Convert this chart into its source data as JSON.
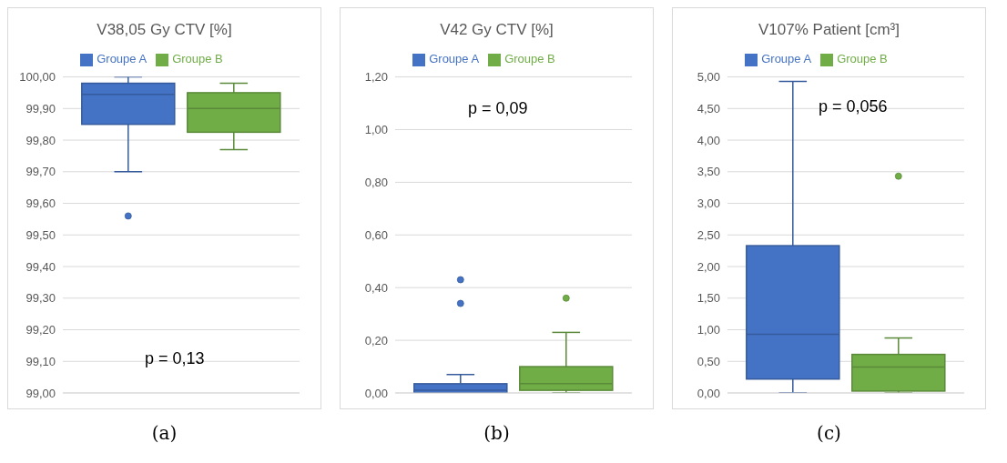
{
  "chart_data": [
    {
      "type": "box",
      "title": "V38,05 Gy CTV [%]",
      "categories": [
        null
      ],
      "legend": "top",
      "grid": "y",
      "tick_labels": "y",
      "ylim": [
        99,
        100
      ],
      "yticks": [
        {
          "value": 99,
          "label": "99,00"
        },
        {
          "value": 99.1,
          "label": "99,10"
        },
        {
          "value": 99.2,
          "label": "99,20"
        },
        {
          "value": 99.3,
          "label": "99,30"
        },
        {
          "value": 99.4,
          "label": "99,40"
        },
        {
          "value": 99.5,
          "label": "99,50"
        },
        {
          "value": 99.6,
          "label": "99,60"
        },
        {
          "value": 99.7,
          "label": "99,70"
        },
        {
          "value": 99.8,
          "label": "99,80"
        },
        {
          "value": 99.9,
          "label": "99,90"
        },
        {
          "value": 100,
          "label": "100,00"
        }
      ],
      "annotations": [
        "p = 0,13",
        "(a)"
      ],
      "series": [
        {
          "name": "Groupe A",
          "color": "#4472c4",
          "boxes": [
            {
              "low": 99.7,
              "q1": 99.85,
              "median": 99.945,
              "q3": 99.98,
              "high": 100,
              "outliers": [
                99.56
              ]
            }
          ]
        },
        {
          "name": "Groupe B",
          "color": "#70ad47",
          "boxes": [
            {
              "low": 99.77,
              "q1": 99.825,
              "median": 99.9,
              "q3": 99.95,
              "high": 99.98
            }
          ]
        }
      ]
    },
    {
      "type": "box",
      "title": "V42 Gy CTV [%]",
      "categories": [
        null
      ],
      "legend": "top",
      "grid": "y",
      "tick_labels": "y",
      "ylim": [
        0,
        1.2
      ],
      "yticks": [
        {
          "value": 0,
          "label": "0,00"
        },
        {
          "value": 0.2,
          "label": "0,20"
        },
        {
          "value": 0.4,
          "label": "0,40"
        },
        {
          "value": 0.6,
          "label": "0,60"
        },
        {
          "value": 0.8,
          "label": "0,80"
        },
        {
          "value": 1,
          "label": "1,00"
        },
        {
          "value": 1.2,
          "label": "1,20"
        }
      ],
      "annotations": [
        "p = 0,09",
        "(b)"
      ],
      "series": [
        {
          "name": "Groupe A",
          "color": "#4472c4",
          "boxes": [
            {
              "low": 0,
              "q1": 0,
              "median": 0.01,
              "q3": 0.035,
              "high": 0.07,
              "outliers": [
                0.34,
                0.43
              ]
            }
          ]
        },
        {
          "name": "Groupe B",
          "color": "#70ad47",
          "boxes": [
            {
              "low": 0,
              "q1": 0.01,
              "median": 0.035,
              "q3": 0.1,
              "high": 0.23,
              "outliers": [
                0.36
              ]
            }
          ]
        }
      ]
    },
    {
      "type": "box",
      "title": "V107% Patient [cm³]",
      "categories": [
        null
      ],
      "legend": "top",
      "grid": "y",
      "tick_labels": "y",
      "ylim": [
        0,
        5
      ],
      "yticks": [
        {
          "value": 0,
          "label": "0,00"
        },
        {
          "value": 0.5,
          "label": "0,50"
        },
        {
          "value": 1,
          "label": "1,00"
        },
        {
          "value": 1.5,
          "label": "1,50"
        },
        {
          "value": 2,
          "label": "2,00"
        },
        {
          "value": 2.5,
          "label": "2,50"
        },
        {
          "value": 3,
          "label": "3,00"
        },
        {
          "value": 3.5,
          "label": "3,50"
        },
        {
          "value": 4,
          "label": "4,00"
        },
        {
          "value": 4.5,
          "label": "4,50"
        },
        {
          "value": 5,
          "label": "5,00"
        }
      ],
      "annotations": [
        "p = 0,056",
        "(c)"
      ],
      "series": [
        {
          "name": "Groupe A",
          "color": "#4472c4",
          "boxes": [
            {
              "low": 0,
              "q1": 0.22,
              "median": 0.93,
              "q3": 2.33,
              "high": 4.93
            }
          ]
        },
        {
          "name": "Groupe B",
          "color": "#70ad47",
          "boxes": [
            {
              "low": 0,
              "q1": 0.03,
              "median": 0.41,
              "q3": 0.61,
              "high": 0.87,
              "outliers": [
                3.43
              ]
            }
          ]
        }
      ]
    }
  ]
}
